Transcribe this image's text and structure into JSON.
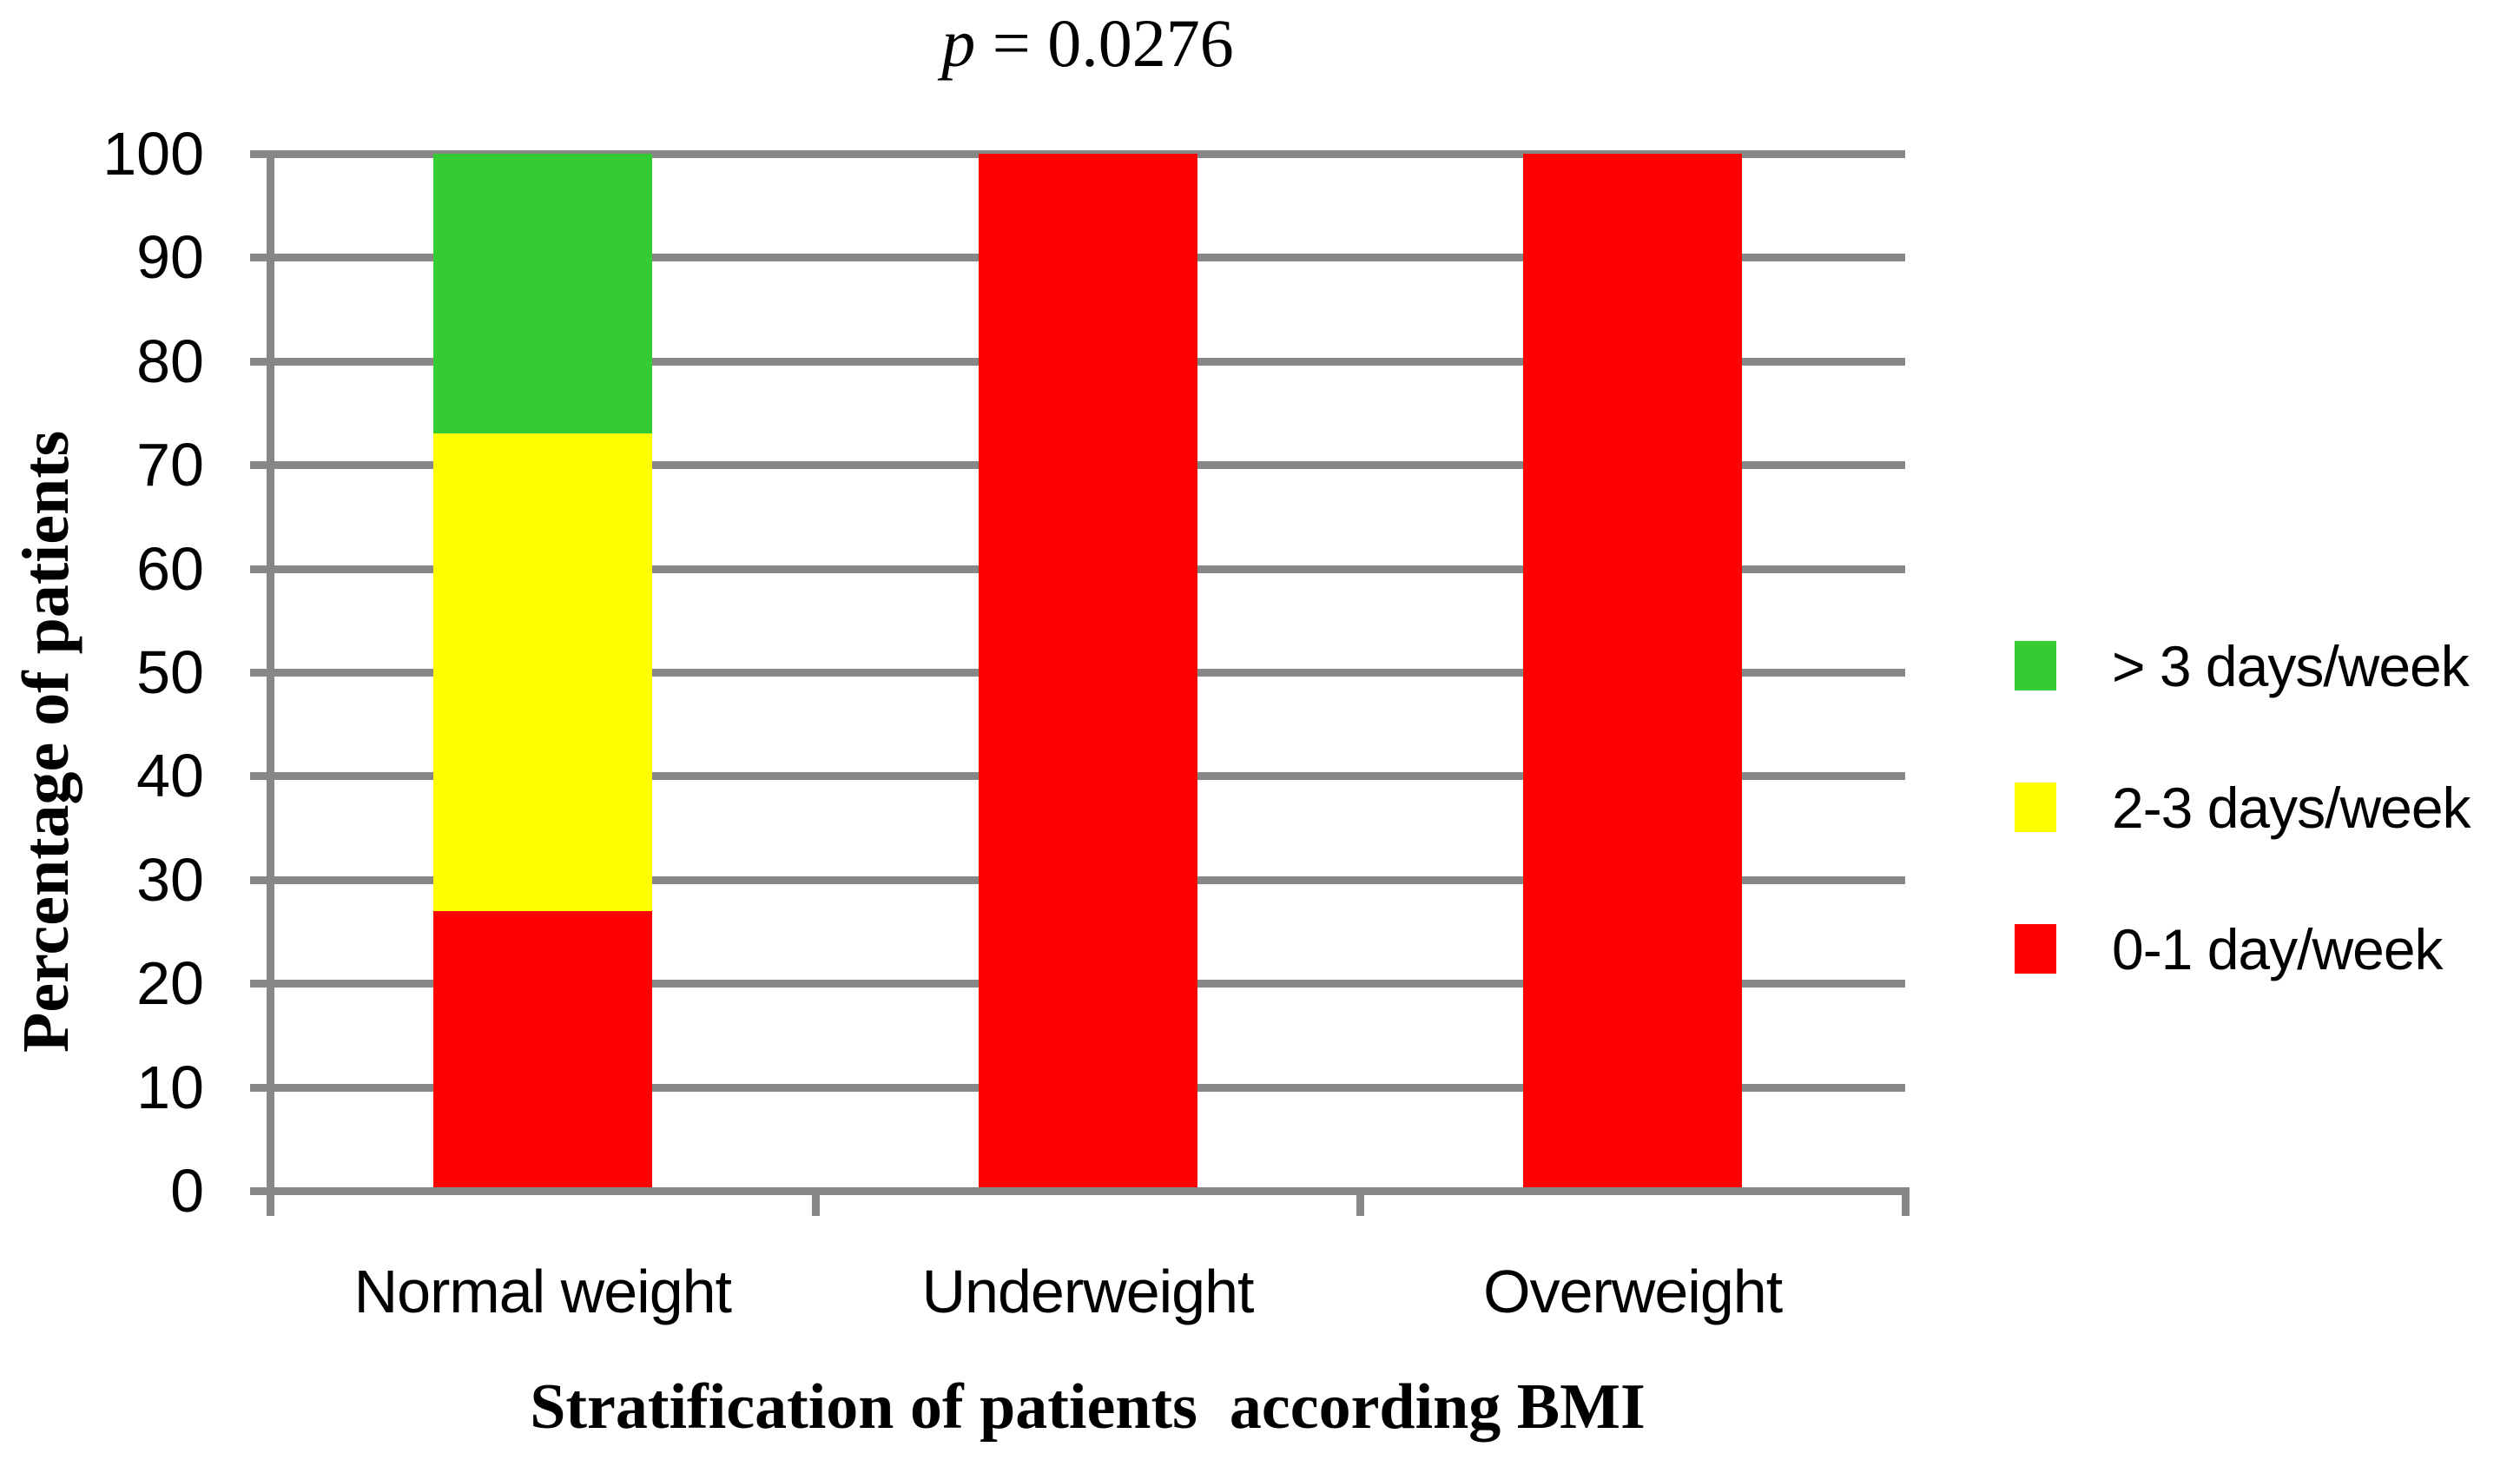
{
  "figure": {
    "title": {
      "prefix": "p",
      "rest": " = 0.0276"
    }
  },
  "colors": {
    "red": "#FF0000",
    "yellow": "#FFFF00",
    "green": "#33CC33",
    "gridline": "#878787",
    "axis": "#878787",
    "text": "#000000",
    "background": "#FFFFFF"
  },
  "chart_data": {
    "type": "bar",
    "stacked": true,
    "title": "p = 0.0276",
    "xlabel": "Stratification of patients  according BMI",
    "ylabel": "Percentage of patients",
    "categories": [
      "Normal weight",
      "Underweight",
      "Overweight"
    ],
    "series": [
      {
        "name": "0-1 day/week",
        "color_key": "red",
        "color": "#FF0000",
        "values": [
          27,
          100,
          100
        ]
      },
      {
        "name": "2-3 days/week",
        "color_key": "yellow",
        "color": "#FFFF00",
        "values": [
          46,
          0,
          0
        ]
      },
      {
        "name": "> 3 days/week",
        "color_key": "green",
        "color": "#33CC33",
        "values": [
          27,
          0,
          0
        ]
      }
    ],
    "ylim": [
      0,
      100
    ],
    "yticks": [
      0,
      10,
      20,
      30,
      40,
      50,
      60,
      70,
      80,
      90,
      100
    ],
    "grid": true,
    "legend_position": "right",
    "legend_order": [
      "> 3 days/week",
      "2-3 days/week",
      "0-1 day/week"
    ]
  }
}
